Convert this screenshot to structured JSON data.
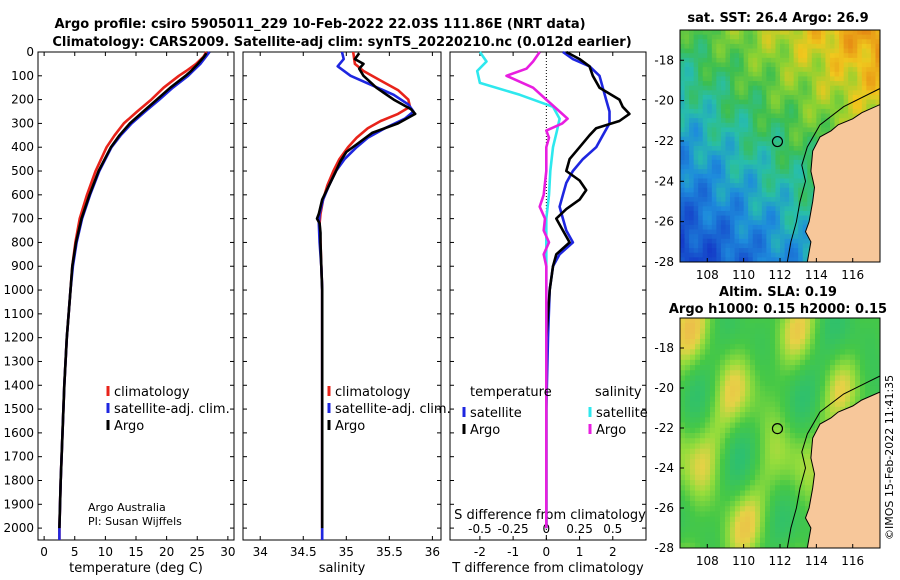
{
  "header": {
    "line1": "Argo profile: csiro 5905011_229 10-Feb-2022 22.03S 111.86E (NRT data)",
    "line2": "Climatology: CARS2009. Satellite-adj clim: synTS_20220210.nc (0.012d earlier)"
  },
  "colors": {
    "climatology": "#e8231a",
    "satellite": "#1e26e0",
    "argo": "#000000",
    "t_sat": "#2ee8ee",
    "s_sat": "#e81ee0"
  },
  "credits": {
    "org": "Argo Australia",
    "pi": "PI: Susan Wijffels",
    "imos": "©IMOS 15-Feb-2022 11:41:35"
  },
  "chart_data": [
    {
      "type": "line",
      "id": "temperature",
      "xlabel": "temperature (deg C)",
      "ylabel": "",
      "xlim": [
        -1,
        31
      ],
      "ylim": [
        2050,
        0
      ],
      "xticks": [
        "0",
        "5",
        "10",
        "15",
        "20",
        "25",
        "30"
      ],
      "xtick_values": [
        0,
        5,
        10,
        15,
        20,
        25,
        30
      ],
      "yticks": [
        "0",
        "100",
        "200",
        "300",
        "400",
        "500",
        "600",
        "700",
        "800",
        "900",
        "1000",
        "1100",
        "1200",
        "1300",
        "1400",
        "1500",
        "1600",
        "1700",
        "1800",
        "1900",
        "2000"
      ],
      "ytick_values": [
        0,
        100,
        200,
        300,
        400,
        500,
        600,
        700,
        800,
        900,
        1000,
        1100,
        1200,
        1300,
        1400,
        1500,
        1600,
        1700,
        1800,
        1900,
        2000
      ],
      "legend": [
        "climatology",
        "satellite-adj. clim.",
        "Argo"
      ],
      "series": [
        {
          "name": "climatology",
          "color": "#e8231a",
          "depth": [
            0,
            20,
            50,
            80,
            100,
            150,
            200,
            250,
            300,
            350,
            400,
            500,
            600,
            700,
            800,
            900,
            1000,
            1200,
            1400,
            1600,
            1800,
            2000,
            2050
          ],
          "values": [
            26.5,
            26,
            24.8,
            23.2,
            22,
            19.5,
            17.5,
            15.2,
            13,
            11.5,
            10.2,
            8.4,
            7,
            5.8,
            5.1,
            4.6,
            4.3,
            3.7,
            3.3,
            3,
            2.7,
            2.5,
            2.5
          ]
        },
        {
          "name": "satellite-adj. clim.",
          "color": "#1e26e0",
          "depth": [
            0,
            20,
            50,
            80,
            100,
            150,
            200,
            250,
            300,
            350,
            400,
            500,
            600,
            700,
            800,
            900,
            1000,
            1200,
            1400,
            1600,
            1800,
            2000,
            2050
          ],
          "values": [
            27,
            26.4,
            25.5,
            24.3,
            23.5,
            21,
            18.8,
            16.5,
            14.3,
            12.5,
            11,
            9,
            7.5,
            6.2,
            5.3,
            4.7,
            4.3,
            3.7,
            3.3,
            3,
            2.7,
            2.5,
            2.5
          ]
        },
        {
          "name": "Argo",
          "color": "#000000",
          "depth": [
            5,
            20,
            50,
            80,
            100,
            150,
            200,
            250,
            300,
            350,
            400,
            500,
            600,
            700,
            800,
            900,
            1000,
            1200,
            1400,
            1600,
            1800,
            2000
          ],
          "values": [
            26.5,
            26.1,
            25.1,
            24,
            23.1,
            20.6,
            18.4,
            16.2,
            14,
            12.3,
            10.9,
            8.9,
            7.4,
            6.1,
            5.2,
            4.6,
            4.3,
            3.7,
            3.3,
            3,
            2.7,
            2.5
          ]
        }
      ]
    },
    {
      "type": "line",
      "id": "salinity",
      "xlabel": "salinity",
      "ylabel": "",
      "xlim": [
        33.8,
        36.1
      ],
      "ylim": [
        2050,
        0
      ],
      "xticks": [
        "34",
        "34.5",
        "35",
        "35.5",
        "36"
      ],
      "xtick_values": [
        34,
        34.5,
        35,
        35.5,
        36
      ],
      "legend": [
        "climatology",
        "satellite-adj. clim.",
        "Argo"
      ],
      "series": [
        {
          "name": "climatology",
          "color": "#e8231a",
          "depth": [
            0,
            50,
            80,
            120,
            160,
            200,
            230,
            260,
            290,
            320,
            360,
            400,
            450,
            500,
            560,
            620,
            680,
            720,
            800,
            900,
            1000,
            1400,
            2000,
            2050
          ],
          "values": [
            35.08,
            35.1,
            35.2,
            35.4,
            35.6,
            35.72,
            35.74,
            35.6,
            35.4,
            35.25,
            35.12,
            35.02,
            34.92,
            34.85,
            34.78,
            34.73,
            34.7,
            34.69,
            34.7,
            34.71,
            34.72,
            34.72,
            34.72,
            34.72
          ]
        },
        {
          "name": "satellite-adj. clim.",
          "color": "#1e26e0",
          "depth": [
            0,
            30,
            60,
            100,
            140,
            180,
            220,
            250,
            280,
            320,
            360,
            400,
            450,
            500,
            560,
            620,
            680,
            720,
            800,
            900,
            1000,
            1400,
            2000,
            2050
          ],
          "values": [
            34.95,
            34.97,
            34.9,
            35.05,
            35.3,
            35.55,
            35.72,
            35.78,
            35.68,
            35.45,
            35.25,
            35.12,
            34.98,
            34.88,
            34.8,
            34.73,
            34.69,
            34.68,
            34.69,
            34.71,
            34.72,
            34.72,
            34.72,
            34.72
          ]
        },
        {
          "name": "Argo",
          "color": "#000000",
          "depth": [
            5,
            30,
            50,
            70,
            100,
            150,
            200,
            240,
            260,
            300,
            340,
            380,
            420,
            460,
            500,
            560,
            620,
            680,
            700,
            720,
            760,
            800,
            900,
            1000,
            1400,
            2000
          ],
          "values": [
            35.15,
            35.1,
            35.2,
            35.15,
            35.2,
            35.35,
            35.55,
            35.75,
            35.8,
            35.6,
            35.3,
            35.15,
            35.0,
            34.93,
            34.88,
            34.8,
            34.72,
            34.68,
            34.66,
            34.69,
            34.7,
            34.7,
            34.71,
            34.72,
            34.72,
            34.72
          ]
        }
      ]
    },
    {
      "type": "line",
      "id": "differences",
      "xlabel": "T difference from climatology",
      "xlabel_top": "S difference from climatology",
      "xlim": [
        -2.9,
        3.0
      ],
      "ylim": [
        2050,
        0
      ],
      "xticks": [
        "-2",
        "-1",
        "0",
        "1",
        "2"
      ],
      "xtick_values": [
        -2,
        -1,
        0,
        1,
        2
      ],
      "sticks": [
        "-0.5",
        "-0.25",
        "0",
        "0.25",
        "0.5"
      ],
      "stick_values": [
        -0.5,
        -0.25,
        0,
        0.25,
        0.5
      ],
      "s_scale": 0.25,
      "legend_t_title": "temperature",
      "legend_s_title": "salinity",
      "legend": [
        "satellite",
        "Argo",
        "satellite",
        "Argo"
      ],
      "series": [
        {
          "name": "T satellite",
          "color": "#1e26e0",
          "depth": [
            0,
            30,
            60,
            100,
            150,
            200,
            250,
            300,
            350,
            400,
            450,
            500,
            550,
            600,
            650,
            700,
            750,
            800,
            850,
            900,
            1000,
            1200,
            1500,
            2000
          ],
          "values": [
            0.5,
            0.8,
            1.3,
            1.6,
            1.7,
            1.8,
            1.9,
            1.9,
            1.7,
            1.5,
            1.1,
            0.8,
            0.6,
            0.5,
            0.4,
            0.5,
            0.6,
            0.8,
            0.4,
            0.2,
            0.1,
            0.05,
            0.0,
            0.0
          ]
        },
        {
          "name": "T Argo",
          "color": "#000000",
          "depth": [
            0,
            30,
            60,
            100,
            150,
            200,
            230,
            260,
            290,
            320,
            350,
            400,
            450,
            500,
            540,
            580,
            620,
            660,
            700,
            750,
            800,
            850,
            900,
            1000,
            1200,
            1500,
            2000
          ],
          "values": [
            0.6,
            1.0,
            1.3,
            1.4,
            1.6,
            2.2,
            2.3,
            2.5,
            2.2,
            1.5,
            1.3,
            1.0,
            0.7,
            0.6,
            1.0,
            1.2,
            1.0,
            0.6,
            0.3,
            0.5,
            0.7,
            0.3,
            0.2,
            0.1,
            0.0,
            0.0,
            0.0
          ]
        },
        {
          "name": "S satellite",
          "color": "#2ee8ee",
          "depth": [
            0,
            40,
            80,
            130,
            180,
            230,
            280,
            330,
            400,
            500,
            600,
            700,
            800,
            900,
            1000,
            1500,
            2000
          ],
          "values": [
            -0.5,
            -0.45,
            -0.52,
            -0.5,
            -0.2,
            0.05,
            0.1,
            0.08,
            0.05,
            0.03,
            0.02,
            0.0,
            0.0,
            0.0,
            0.0,
            0.0,
            0.0
          ]
        },
        {
          "name": "S Argo",
          "color": "#e81ee0",
          "depth": [
            0,
            40,
            70,
            100,
            150,
            200,
            250,
            280,
            300,
            330,
            360,
            400,
            500,
            600,
            650,
            700,
            750,
            800,
            850,
            900,
            1000,
            1500,
            2000
          ],
          "values": [
            -0.05,
            -0.1,
            -0.15,
            -0.3,
            -0.1,
            0.0,
            0.1,
            0.16,
            0.12,
            0.0,
            0.02,
            0.0,
            0.0,
            -0.02,
            -0.05,
            -0.01,
            -0.02,
            0.02,
            -0.02,
            0.0,
            0.0,
            0.0,
            0.0
          ]
        }
      ]
    },
    {
      "type": "heatmap",
      "id": "sst_map",
      "title": "sat. SST: 26.4 Argo: 26.9",
      "xlim": [
        106.5,
        117.5
      ],
      "ylim": [
        -28,
        -16.5
      ],
      "xticks": [
        "108",
        "110",
        "112",
        "114",
        "116"
      ],
      "xtick_values": [
        108,
        110,
        112,
        114,
        116
      ],
      "yticks": [
        "-18",
        "-20",
        "-22",
        "-24",
        "-26",
        "-28"
      ],
      "ytick_values": [
        -18,
        -20,
        -22,
        -24,
        -26,
        -28
      ],
      "marker": {
        "lon": 111.86,
        "lat": -22.03
      }
    },
    {
      "type": "heatmap",
      "id": "sla_map",
      "title_line1": "Altim. SLA: 0.19",
      "title_line2": "Argo h1000: 0.15 h2000: 0.15",
      "xlim": [
        106.5,
        117.5
      ],
      "ylim": [
        -28,
        -16.5
      ],
      "xticks": [
        "108",
        "110",
        "112",
        "114",
        "116"
      ],
      "xtick_values": [
        108,
        110,
        112,
        114,
        116
      ],
      "yticks": [
        "-18",
        "-20",
        "-22",
        "-24",
        "-26",
        "-28"
      ],
      "ytick_values": [
        -18,
        -20,
        -22,
        -24,
        -26,
        -28
      ],
      "marker": {
        "lon": 111.86,
        "lat": -22.03
      }
    }
  ]
}
